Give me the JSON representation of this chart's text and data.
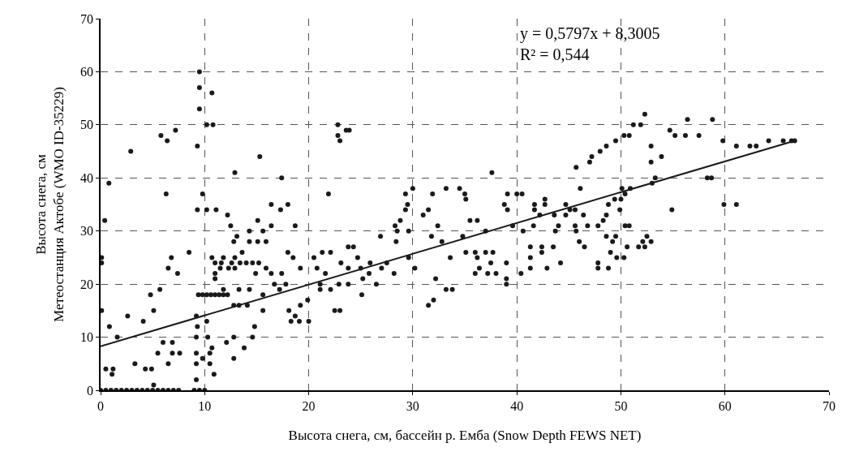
{
  "chart_data": {
    "type": "scatter",
    "xlabel": "Высота снега, см, бассейн р. Емба (Snow Depth FEWS NET)",
    "ylabel": "Высота снега, см\nМетеостанция Актобе (WMO ID-35229)",
    "annotations": [
      "y = 0,5797x + 8,3005\nR² = 0,544"
    ],
    "xlim": [
      0,
      70
    ],
    "ylim": [
      0,
      70
    ],
    "xticks": [
      0,
      10,
      20,
      30,
      40,
      50,
      60,
      70
    ],
    "yticks": [
      0,
      10,
      20,
      30,
      40,
      50,
      60,
      70
    ],
    "grid": true,
    "marker": "circle",
    "series": [
      {
        "color": "#1a1a1a",
        "x": [
          9.5,
          9.5,
          10.7,
          9.5,
          10.2,
          10.8,
          5.8,
          6.4,
          7.2,
          2.9,
          9.3,
          15.3,
          12.9,
          17.4,
          0.8,
          6.3,
          9.8,
          0.4,
          22.8,
          22.8,
          23,
          23.6,
          23.9,
          21.9,
          9.3,
          10.2,
          11.1,
          12.2,
          12.5,
          16.4,
          18,
          17.3,
          18.7,
          9.4,
          9.8,
          10.2,
          10.6,
          11,
          11.4,
          11.8,
          12.2,
          11,
          11.6,
          12.6,
          13.4,
          14,
          14.6,
          15.2,
          8.5,
          5.1,
          2.6,
          4.1,
          1.6,
          0.85,
          0.1,
          0.1,
          0.1,
          4.8,
          5.7,
          6.8,
          6.5,
          7.4,
          0.5,
          1.1,
          1.2,
          3.3,
          4.3,
          4.9,
          5.1,
          6.5,
          6,
          6.9,
          5.5,
          6.9,
          7.6,
          12.8,
          12.1,
          13.8,
          12.8,
          14.6,
          14.8,
          0,
          0.5,
          1,
          1.5,
          2,
          2.5,
          3,
          3.5,
          4,
          4.5,
          5,
          5.5,
          6,
          6.5,
          7,
          7.5,
          9,
          9.5,
          10,
          9.2,
          9.3,
          9.2,
          9.2,
          9.2,
          9.2,
          9.8,
          10.5,
          10.5,
          10.3,
          10.2,
          10.7,
          10.9,
          12.8,
          13.3,
          14.1,
          15.6,
          18.1,
          18.7,
          18.3,
          19.1,
          20,
          19.2,
          19.9,
          11.8,
          13.3,
          14.3,
          15.6,
          17.2,
          16.7,
          17.8,
          14.9,
          16.4,
          17.4,
          11,
          11,
          11.5,
          12.3,
          12.9,
          15.9,
          12.9,
          10.7,
          11.8,
          13.6,
          14.3,
          15.1,
          15.9,
          12.8,
          13.1,
          14.3,
          15.6,
          15.1,
          16.4,
          18,
          18.5,
          19.2,
          20.5,
          21.3,
          22.1,
          20.8,
          21.6,
          21.1,
          21.1,
          22.1,
          22.5,
          23,
          22.9,
          23.8,
          23.1,
          23.8,
          23.8,
          24.3,
          24.7,
          25,
          25.1,
          25.2,
          25.8,
          25.9,
          26.5,
          26.9,
          27,
          27.5,
          28.3,
          28.5,
          28.4,
          28.8,
          29.3,
          29.5,
          29.3,
          29.6,
          28.2,
          29.6,
          30,
          30.2,
          31,
          31.5,
          31.8,
          31.9,
          32.2,
          32,
          31.5,
          32.4,
          32.8,
          33.2,
          33.8,
          33.2,
          33.6,
          37.6,
          34.5,
          35,
          35.1,
          35.5,
          36.2,
          37,
          34.8,
          35.1,
          36,
          37,
          37.7,
          36.2,
          37.5,
          36.4,
          36,
          37.2,
          38,
          39,
          39,
          39,
          40.4,
          38.8,
          39.1,
          39.1,
          40,
          40.5,
          39.6,
          40.6,
          41.3,
          41.3,
          41.3,
          41.6,
          41.7,
          41.7,
          42.7,
          42.7,
          42.2,
          42.4,
          42.4,
          42.9,
          43.5,
          43.7,
          43.6,
          44.2,
          44,
          44.7,
          44.7,
          45.1,
          45.6,
          45.6,
          45.7,
          46,
          46.5,
          46.4,
          45.7,
          46.1,
          47,
          47.2,
          48,
          48.6,
          49.5,
          50.3,
          50.8,
          51.2,
          51.9,
          52.3,
          46.8,
          47.8,
          48.3,
          48.6,
          48.8,
          49.4,
          50,
          49.9,
          50.1,
          50.9,
          50.4,
          50.4,
          50.8,
          47.8,
          47.8,
          48.8,
          49,
          49.6,
          50.3,
          50.6,
          51.7,
          52.3,
          52.1,
          52.9,
          52.5,
          48.6,
          49.2,
          49.5,
          52.9,
          52.9,
          53,
          53.3,
          53.9,
          54.9,
          54.7,
          55.2,
          56.2,
          56.4,
          57.5,
          58.3,
          58.7,
          58.8,
          59.8,
          59.9,
          61.1,
          61.1,
          62.4,
          63,
          64.2,
          65.6,
          66.4,
          66.7
        ],
        "values": [
          60,
          57,
          56,
          53,
          50,
          50,
          48,
          47,
          49,
          45,
          46,
          44,
          41,
          40,
          39,
          37,
          37,
          32,
          50,
          48,
          47,
          49,
          49,
          37,
          34,
          34,
          34,
          33,
          31,
          35,
          35,
          34,
          31,
          18,
          18,
          18,
          18,
          18,
          18,
          18,
          18,
          24,
          24,
          24,
          24,
          24,
          24,
          24,
          26,
          15,
          14,
          13,
          10,
          12,
          15,
          25,
          24,
          18,
          19,
          25,
          23,
          22,
          4,
          3,
          4,
          5,
          4,
          4,
          1,
          5,
          9,
          9,
          7,
          7,
          7,
          6,
          9,
          8,
          10,
          10,
          12,
          0,
          0,
          0,
          0,
          0,
          0,
          0,
          0,
          0,
          0,
          0,
          0,
          0,
          0,
          0,
          0,
          0,
          0,
          0,
          14,
          12,
          10,
          7,
          5,
          2,
          6,
          5,
          7,
          10,
          13,
          8,
          3,
          16,
          16,
          16,
          15,
          15,
          14,
          13,
          13,
          13,
          16,
          17,
          19,
          19,
          19,
          18,
          19,
          20,
          20,
          22,
          22,
          22,
          21,
          22,
          23,
          23,
          23,
          23,
          25,
          25,
          25,
          26,
          28,
          28,
          28,
          28,
          29,
          30,
          30,
          32,
          31,
          26,
          25,
          23,
          25,
          26,
          26,
          23,
          22,
          20,
          19,
          19,
          15,
          15,
          20,
          20,
          24,
          23,
          27,
          27,
          25,
          23,
          18,
          21,
          22,
          24,
          20,
          29,
          23,
          24,
          31,
          30,
          28,
          32,
          37,
          35,
          34,
          30,
          22,
          25,
          38,
          23,
          33,
          34,
          29,
          37,
          21,
          17,
          16,
          31,
          28,
          19,
          19,
          38,
          25,
          41,
          38,
          37,
          36,
          32,
          32,
          30,
          29,
          26,
          26,
          26,
          26,
          25,
          24,
          23,
          22,
          22,
          22,
          24,
          21,
          20,
          22,
          35,
          34,
          37,
          37,
          37,
          31,
          30,
          27,
          25,
          23,
          31,
          34,
          35,
          36,
          35,
          33,
          27,
          26,
          23,
          27,
          30,
          33,
          24,
          31,
          35,
          33,
          34,
          34,
          31,
          30,
          28,
          27,
          33,
          42,
          38,
          43,
          44,
          45,
          46,
          47,
          48,
          48,
          50,
          50,
          52,
          31,
          31,
          32,
          33,
          35,
          36,
          36,
          34,
          38,
          38,
          37,
          31,
          31,
          24,
          23,
          23,
          26,
          25,
          25,
          27,
          27,
          27,
          28,
          28,
          29,
          29,
          28,
          29,
          46,
          43,
          39,
          40,
          44,
          34,
          49,
          48,
          48,
          51,
          48,
          40,
          40,
          51,
          47,
          35,
          46,
          35,
          46,
          46,
          47,
          47,
          47,
          47
        ]
      },
      {
        "type": "line",
        "color": "#1a1a1a",
        "line_style": "solid",
        "marker": "none",
        "x": [
          0,
          66.7
        ],
        "values": [
          8.3,
          47
        ]
      }
    ]
  }
}
